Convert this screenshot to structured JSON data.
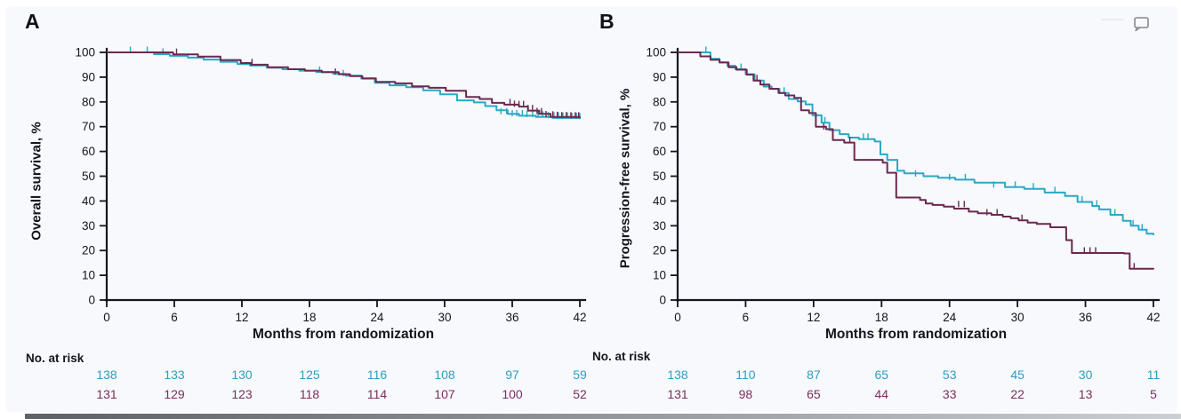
{
  "figure": {
    "background": "#f7f9fc",
    "axis_color": "#15151f",
    "teal_accent": "#2aa9c4",
    "maroon_accent": "#6b2950"
  },
  "icons": {
    "comment_bubble": "comment-bubble-icon"
  },
  "chart_data": [
    {
      "type": "line",
      "style": "kaplan-meier-step",
      "panel_letter": "A",
      "ylabel": "Overall survival, %",
      "xlabel": "Months from randomization",
      "xlim": [
        0,
        42
      ],
      "ylim": [
        0,
        100
      ],
      "x_ticks": [
        0,
        6,
        12,
        18,
        24,
        30,
        36,
        42
      ],
      "y_ticks": [
        0,
        10,
        20,
        30,
        40,
        50,
        60,
        70,
        80,
        90,
        100
      ],
      "grid": false,
      "legend": "none",
      "series": [
        {
          "name": "teal-arm",
          "color": "#2aa9c4",
          "steps": [
            [
              0,
              100
            ],
            [
              4.2,
              99.3
            ],
            [
              5.6,
              98.6
            ],
            [
              7.2,
              97.9
            ],
            [
              8.6,
              97.1
            ],
            [
              10.1,
              96.2
            ],
            [
              11.6,
              95.3
            ],
            [
              12.7,
              94.7
            ],
            [
              14.2,
              93.8
            ],
            [
              15.6,
              93.2
            ],
            [
              17.1,
              92.6
            ],
            [
              18.6,
              92
            ],
            [
              20.1,
              91.3
            ],
            [
              21.2,
              90.6
            ],
            [
              22.6,
              89.4
            ],
            [
              23.8,
              87.7
            ],
            [
              25.1,
              86.7
            ],
            [
              26.6,
              85.9
            ],
            [
              28.1,
              84.7
            ],
            [
              29.6,
              83.1
            ],
            [
              31.1,
              80.6
            ],
            [
              32.6,
              79.8
            ],
            [
              33.6,
              78.3
            ],
            [
              34.6,
              76.6
            ],
            [
              35.6,
              75.2
            ],
            [
              36.6,
              74.4
            ],
            [
              38.1,
              73.9
            ],
            [
              39.6,
              73.5
            ],
            [
              42,
              73.2
            ]
          ],
          "censors": [
            [
              2.1,
              100
            ],
            [
              3.6,
              100
            ],
            [
              5,
              99.3
            ],
            [
              12.9,
              94.7
            ],
            [
              18.9,
              92
            ],
            [
              21,
              90.6
            ],
            [
              35,
              75.2
            ],
            [
              35.5,
              75.2
            ],
            [
              36,
              74.4
            ],
            [
              36.4,
              74.4
            ],
            [
              36.9,
              74.4
            ],
            [
              37.3,
              74
            ],
            [
              37.8,
              74
            ],
            [
              38.3,
              73.9
            ],
            [
              38.7,
              73.9
            ],
            [
              39.2,
              73.6
            ],
            [
              39.7,
              73.5
            ],
            [
              40.1,
              73.5
            ],
            [
              40.5,
              73.4
            ],
            [
              40.9,
              73.4
            ],
            [
              41.3,
              73.3
            ],
            [
              41.7,
              73.3
            ],
            [
              42,
              73.2
            ]
          ]
        },
        {
          "name": "maroon-arm",
          "color": "#6b2950",
          "steps": [
            [
              0,
              100
            ],
            [
              5.9,
              99.2
            ],
            [
              8.1,
              98.3
            ],
            [
              10.1,
              96.9
            ],
            [
              11.9,
              95.7
            ],
            [
              12.8,
              95
            ],
            [
              14.3,
              94
            ],
            [
              16.1,
              93.2
            ],
            [
              17.6,
              92.6
            ],
            [
              19.1,
              92
            ],
            [
              20.6,
              91.2
            ],
            [
              21.6,
              90.4
            ],
            [
              22.7,
              89.5
            ],
            [
              23.9,
              88.1
            ],
            [
              25.6,
              87.5
            ],
            [
              27.1,
              86.3
            ],
            [
              28.6,
              85.7
            ],
            [
              30.1,
              84.5
            ],
            [
              31.9,
              82
            ],
            [
              33.1,
              81.2
            ],
            [
              34.2,
              79.6
            ],
            [
              35.3,
              78.9
            ],
            [
              36.6,
              78.1
            ],
            [
              37.4,
              76.5
            ],
            [
              38.4,
              75.2
            ],
            [
              39.4,
              73.9
            ],
            [
              42,
              73.5
            ]
          ],
          "censors": [
            [
              6.2,
              99.2
            ],
            [
              12.9,
              95
            ],
            [
              20.3,
              91.2
            ],
            [
              35.8,
              78.9
            ],
            [
              36.2,
              78.2
            ],
            [
              36.6,
              78.1
            ],
            [
              37,
              78.1
            ],
            [
              37.4,
              76.5
            ],
            [
              37.8,
              76.5
            ],
            [
              38.2,
              75.3
            ],
            [
              38.6,
              75.2
            ],
            [
              39,
              74
            ],
            [
              39.6,
              73.9
            ],
            [
              40,
              73.7
            ],
            [
              40.4,
              73.6
            ],
            [
              40.8,
              73.6
            ],
            [
              41.2,
              73.5
            ],
            [
              41.6,
              73.5
            ],
            [
              41.9,
              73.5
            ]
          ]
        }
      ],
      "risk_table": {
        "label": "No. at risk",
        "rows": [
          {
            "name": "teal-arm",
            "color": "#2e9dc2",
            "values": [
              138,
              133,
              130,
              125,
              116,
              108,
              97,
              59
            ]
          },
          {
            "name": "maroon-arm",
            "color": "#7c2c5f",
            "values": [
              131,
              129,
              123,
              118,
              114,
              107,
              100,
              52
            ]
          }
        ]
      }
    },
    {
      "type": "line",
      "style": "kaplan-meier-step",
      "panel_letter": "B",
      "ylabel": "Progression-free survival, %",
      "xlabel": "Months from randomization",
      "xlim": [
        0,
        42
      ],
      "ylim": [
        0,
        100
      ],
      "x_ticks": [
        0,
        6,
        12,
        18,
        24,
        30,
        36,
        42
      ],
      "y_ticks": [
        0,
        10,
        20,
        30,
        40,
        50,
        60,
        70,
        80,
        90,
        100
      ],
      "grid": false,
      "legend": "none",
      "series": [
        {
          "name": "teal-arm",
          "color": "#2aa9c4",
          "steps": [
            [
              0,
              100
            ],
            [
              2.9,
              97.4
            ],
            [
              3.7,
              96
            ],
            [
              4.4,
              94.6
            ],
            [
              5.1,
              93.2
            ],
            [
              6,
              91.2
            ],
            [
              6.8,
              88.6
            ],
            [
              7.6,
              86.2
            ],
            [
              8.3,
              85.2
            ],
            [
              9,
              83.6
            ],
            [
              9.8,
              81.2
            ],
            [
              10.6,
              80.2
            ],
            [
              11.3,
              79
            ],
            [
              11.9,
              74.6
            ],
            [
              12.7,
              71.6
            ],
            [
              13.4,
              68.6
            ],
            [
              14.3,
              67
            ],
            [
              15.1,
              65.6
            ],
            [
              16,
              65
            ],
            [
              17.4,
              64
            ],
            [
              17.9,
              58.8
            ],
            [
              18.5,
              56.6
            ],
            [
              19.4,
              52.2
            ],
            [
              20,
              51.2
            ],
            [
              21.7,
              50
            ],
            [
              23,
              49.4
            ],
            [
              24.5,
              48.6
            ],
            [
              26.2,
              47.4
            ],
            [
              28.9,
              45.6
            ],
            [
              30.6,
              44.9
            ],
            [
              32.4,
              43.4
            ],
            [
              34.2,
              42
            ],
            [
              35.3,
              39.6
            ],
            [
              36.6,
              38
            ],
            [
              37.2,
              36.6
            ],
            [
              38.2,
              34.4
            ],
            [
              39.3,
              32
            ],
            [
              40,
              30
            ],
            [
              40.7,
              28.4
            ],
            [
              41.4,
              26.8
            ],
            [
              42,
              26.2
            ]
          ],
          "censors": [
            [
              2.5,
              100
            ],
            [
              5.6,
              93.2
            ],
            [
              9.4,
              83.6
            ],
            [
              13,
              71.6
            ],
            [
              16.4,
              65
            ],
            [
              16.8,
              65
            ],
            [
              21,
              50
            ],
            [
              24,
              48.6
            ],
            [
              25.4,
              48.6
            ],
            [
              27.9,
              45.6
            ],
            [
              29.8,
              45.6
            ],
            [
              31.4,
              44.9
            ],
            [
              33.3,
              43.4
            ],
            [
              35.7,
              39.6
            ],
            [
              37,
              38
            ],
            [
              38.6,
              34.4
            ],
            [
              40.2,
              30
            ],
            [
              41,
              28.4
            ]
          ]
        },
        {
          "name": "maroon-arm",
          "color": "#6b2950",
          "steps": [
            [
              0,
              100
            ],
            [
              2,
              98.4
            ],
            [
              2.9,
              97
            ],
            [
              3.7,
              95.9
            ],
            [
              4.5,
              94
            ],
            [
              5.2,
              93
            ],
            [
              6.1,
              91
            ],
            [
              6.7,
              88.6
            ],
            [
              7.3,
              87
            ],
            [
              8.1,
              85.3
            ],
            [
              8.9,
              83.6
            ],
            [
              9.5,
              82.6
            ],
            [
              10.3,
              81.6
            ],
            [
              10.9,
              76.6
            ],
            [
              11.6,
              75.5
            ],
            [
              12.2,
              70
            ],
            [
              13.1,
              69
            ],
            [
              13.7,
              64.6
            ],
            [
              14.7,
              63.6
            ],
            [
              15.6,
              56.6
            ],
            [
              18.1,
              55.5
            ],
            [
              18.5,
              51.4
            ],
            [
              19.3,
              41.4
            ],
            [
              21.4,
              40.4
            ],
            [
              21.9,
              39
            ],
            [
              22.5,
              38.4
            ],
            [
              23.5,
              37.7
            ],
            [
              24.4,
              36.9
            ],
            [
              25.7,
              35.7
            ],
            [
              26.5,
              35
            ],
            [
              27.7,
              34.4
            ],
            [
              28.7,
              33.7
            ],
            [
              29.4,
              33
            ],
            [
              30.1,
              32.2
            ],
            [
              30.9,
              31.3
            ],
            [
              31.7,
              30.7
            ],
            [
              32.9,
              29.4
            ],
            [
              34.3,
              24.2
            ],
            [
              34.8,
              19
            ],
            [
              39.4,
              18.8
            ],
            [
              39.9,
              12.6
            ],
            [
              42,
              12.4
            ]
          ],
          "censors": [
            [
              7,
              88.6
            ],
            [
              12.9,
              69
            ],
            [
              15.2,
              63.6
            ],
            [
              24.8,
              37.7
            ],
            [
              25.3,
              37.7
            ],
            [
              27.3,
              34.4
            ],
            [
              28.2,
              34.4
            ],
            [
              30.4,
              32.2
            ],
            [
              35.9,
              19
            ],
            [
              36.4,
              19
            ],
            [
              36.9,
              19
            ],
            [
              40.3,
              12.6
            ]
          ]
        }
      ],
      "risk_table": {
        "label": "No. at risk",
        "rows": [
          {
            "name": "teal-arm",
            "color": "#2e9dc2",
            "values": [
              138,
              110,
              87,
              65,
              53,
              45,
              30,
              11
            ]
          },
          {
            "name": "maroon-arm",
            "color": "#7c2c5f",
            "values": [
              131,
              98,
              65,
              44,
              33,
              22,
              13,
              5
            ]
          }
        ]
      }
    }
  ]
}
